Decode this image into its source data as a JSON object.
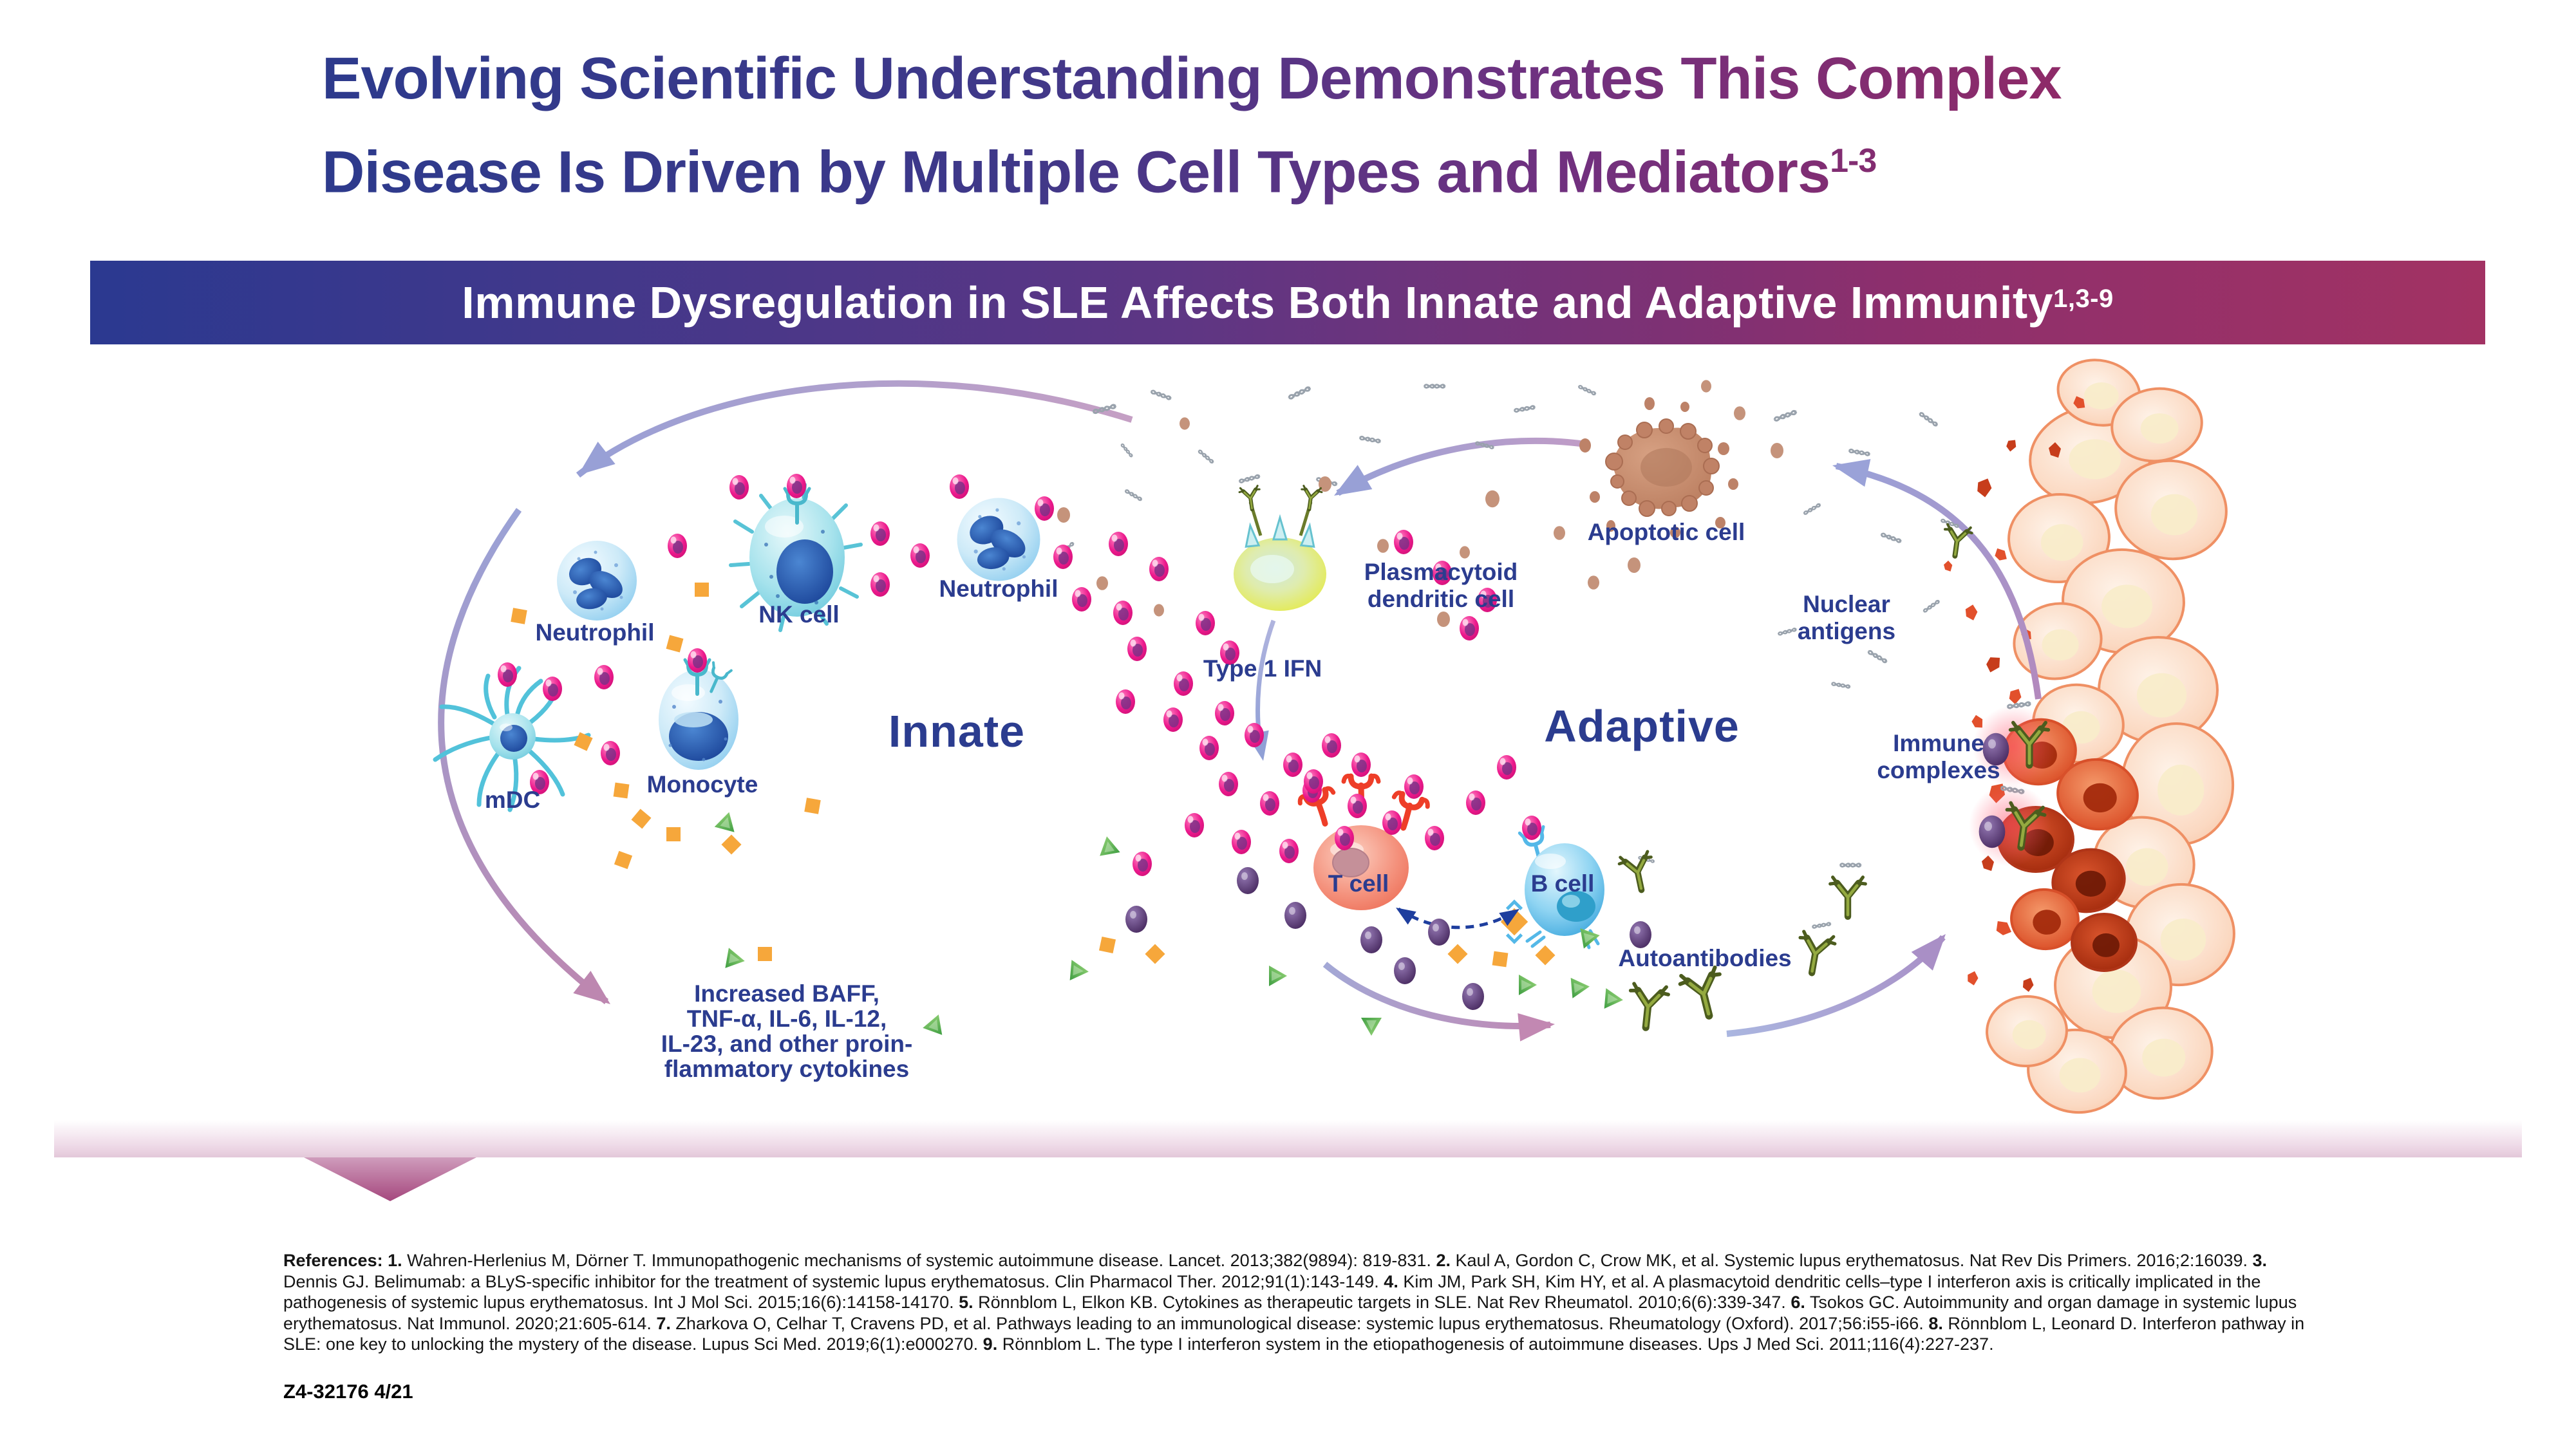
{
  "title": {
    "line1": "Evolving Scientific Understanding Demonstrates This Complex",
    "line2": "Disease Is Driven by Multiple Cell Types and Mediators",
    "sup": "1-3"
  },
  "banner": {
    "text": "Immune Dysregulation in SLE Affects Both Innate and Adaptive Immunity",
    "sup": "1,3-9"
  },
  "diagram": {
    "section_innate": "Innate",
    "section_adaptive": "Adaptive",
    "labels": {
      "neutrophil_left": "Neutrophil",
      "nk_cell": "NK cell",
      "neutrophil_right": "Neutrophil",
      "mdc": "mDC",
      "monocyte": "Monocyte",
      "pdc_1": "Plasmacytoid",
      "pdc_2": "dendritic cell",
      "type1_ifn": "Type 1 IFN",
      "apoptotic_cell": "Apoptotic cell",
      "nuclear_1": "Nuclear",
      "nuclear_2": "antigens",
      "immune_1": "Immune",
      "immune_2": "complexes",
      "t_cell": "T cell",
      "b_cell": "B cell",
      "autoantibodies": "Autoantibodies"
    },
    "cytokines": [
      "Increased BAFF,",
      "TNF-α, IL-6, IL-12,",
      "IL-23, and other proin-",
      "flammatory cytokines"
    ]
  },
  "footer": {
    "references": [
      {
        "b": "References: 1.",
        "t": " Wahren-Herlenius M, Dörner T. Immunopathogenic mechanisms of systemic autoimmune disease. Lancet. 2013;382(9894): 819-831. "
      },
      {
        "b": "2.",
        "t": " Kaul A, Gordon C, Crow MK, et al. Systemic lupus erythematosus. Nat Rev Dis Primers. 2016;2:16039. "
      },
      {
        "b": "3.",
        "t": " Dennis GJ. Belimumab: a BLyS-specific inhibitor for the treatment of systemic lupus erythematosus. Clin Pharmacol Ther. 2012;91(1):143-149. "
      },
      {
        "b": "4.",
        "t": " Kim JM, Park SH, Kim HY, et al. A plasmacytoid dendritic cells–type I interferon axis is critically implicated in the pathogenesis of systemic lupus erythematosus. Int J Mol Sci. 2015;16(6):14158-14170. "
      },
      {
        "b": "5.",
        "t": " Rönnblom L, Elkon KB. Cytokines as therapeutic targets in SLE. Nat Rev Rheumatol. 2010;6(6):339-347. "
      },
      {
        "b": "6.",
        "t": " Tsokos GC. Autoimmunity and organ damage in systemic lupus erythematosus. Nat Immunol. 2020;21:605-614. "
      },
      {
        "b": "7.",
        "t": " Zharkova O, Celhar T, Cravens PD, et al. Pathways leading to an immunological disease: systemic lupus erythematosus. Rheumatology (Oxford). 2017;56:i55-i66. "
      },
      {
        "b": "8.",
        "t": " Rönnblom L, Leonard D. Interferon pathway in SLE: one key to unlocking the mystery of the disease. Lupus Sci Med. 2019;6(1):e000270. "
      },
      {
        "b": "9.",
        "t": " Rönnblom L. The type I interferon system in the etiopathogenesis of autoimmune diseases. Ups J Med Sci. 2011;116(4):227-237."
      }
    ],
    "code": "Z4-32176 4/21"
  },
  "colors": {
    "label_blue": "#2b3c8f",
    "title_blue": "#2d3a8c",
    "title_magenta": "#8e2a68",
    "banner_blue": "#2b3990",
    "banner_magenta": "#a23263",
    "pink_dot": "#ec1a8d",
    "purple_particle": "#54356f",
    "orange_particle": "#f6a73b",
    "green_particle": "#3f9e42",
    "antibody_olive": "#4c5c1e",
    "arrow_lavender": "#98a0d6",
    "arrow_mauve": "#bd87b0",
    "band_pink": "#eed9e7",
    "chevron_pink": "#a5477d"
  }
}
